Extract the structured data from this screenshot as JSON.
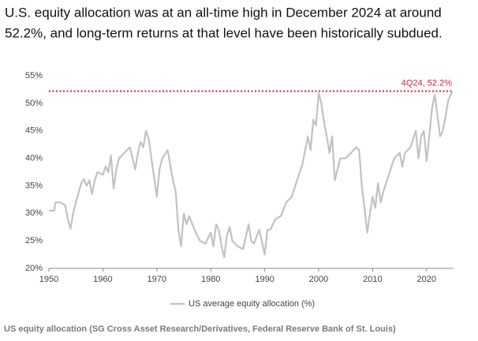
{
  "chart_data": {
    "type": "line",
    "title_lines": [
      "U.S. equity allocation was at an all-time high in December 2024 at around",
      "52.2%, and long-term returns at that level have been historically subdued."
    ],
    "annotation": "4Q24, 52.2%",
    "reference_line": {
      "value": 52.2,
      "color": "#d6203a"
    },
    "source": "US equity allocation (SG Cross Asset Research/Derivatives, Federal Reserve Bank of St. Louis)",
    "xlim": [
      1950,
      2025
    ],
    "xticks": [
      1950,
      1960,
      1970,
      1980,
      1990,
      2000,
      2010,
      2020
    ],
    "ylim": [
      20,
      55
    ],
    "yticks": [
      {
        "value": 20,
        "label": "20%"
      },
      {
        "value": 25,
        "label": "25%"
      },
      {
        "value": 30,
        "label": "30%"
      },
      {
        "value": 35,
        "label": "35%"
      },
      {
        "value": 40,
        "label": "40%"
      },
      {
        "value": 45,
        "label": "45%"
      },
      {
        "value": 50,
        "label": "50%"
      },
      {
        "value": 55,
        "label": "55%"
      }
    ],
    "grid": false,
    "legend": "bottom",
    "x": [
      1950,
      1951,
      1951.2,
      1952,
      1953,
      1953.5,
      1954,
      1954.5,
      1955,
      1956,
      1956.5,
      1957,
      1957.5,
      1958,
      1958.5,
      1959,
      1960,
      1960.5,
      1961,
      1961.5,
      1962,
      1962.5,
      1963,
      1964,
      1965,
      1966,
      1966.5,
      1967,
      1967.5,
      1968,
      1968.5,
      1969,
      1970,
      1970.5,
      1971,
      1972,
      1973,
      1973.5,
      1974,
      1974.5,
      1975,
      1975.5,
      1976,
      1977,
      1978,
      1979,
      1980,
      1980.5,
      1981,
      1981.5,
      1982,
      1982.5,
      1983,
      1983.5,
      1984,
      1985,
      1986,
      1987,
      1987.5,
      1988,
      1989,
      1990,
      1990.5,
      1991,
      1992,
      1993,
      1994,
      1995,
      1996,
      1997,
      1998,
      1998.5,
      1999,
      1999.5,
      2000,
      2000.5,
      2001,
      2001.5,
      2002,
      2002.5,
      2003,
      2003.5,
      2004,
      2005,
      2006,
      2007,
      2007.5,
      2008,
      2008.5,
      2009,
      2009.5,
      2010,
      2010.5,
      2011,
      2011.5,
      2012,
      2013,
      2014,
      2015,
      2015.5,
      2016,
      2017,
      2018,
      2018.5,
      2019,
      2019.5,
      2020,
      2020.5,
      2021,
      2021.5,
      2022,
      2022.5,
      2023,
      2023.5,
      2024,
      2024.75
    ],
    "series": [
      {
        "name": "US average equity allocation (%)",
        "color": "#c4c1c1",
        "values": [
          30.5,
          30.5,
          32,
          32,
          31.5,
          29,
          27.2,
          30,
          32,
          35.5,
          36.2,
          35,
          36,
          33.5,
          36,
          37.5,
          37,
          38.5,
          37.5,
          40.5,
          34.5,
          38,
          40,
          41,
          42,
          38,
          41,
          43,
          42,
          45,
          43.5,
          40,
          33,
          38,
          40,
          41.5,
          36,
          34,
          27,
          24,
          30,
          28,
          29.5,
          27,
          25,
          24.5,
          26.5,
          24,
          28,
          27,
          24,
          22,
          26,
          27.5,
          25,
          24,
          23.5,
          28,
          25,
          24.5,
          27,
          22.5,
          27,
          27,
          29,
          29.5,
          32,
          33,
          36,
          39,
          44,
          41.5,
          47,
          46,
          51.8,
          50,
          46.5,
          44,
          41,
          44,
          36,
          38,
          40,
          40,
          41,
          42,
          41.5,
          35,
          31,
          26.5,
          30,
          33,
          31,
          35.5,
          32,
          34,
          37,
          40,
          41,
          38.5,
          41,
          42,
          45,
          40,
          44,
          45,
          39.5,
          44,
          49,
          51.5,
          48,
          44,
          45,
          47.5,
          50.5,
          52.2
        ]
      }
    ]
  }
}
